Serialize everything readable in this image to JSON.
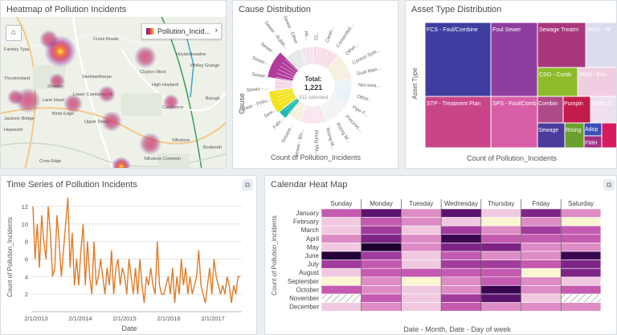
{
  "heatmap_card": {
    "title": "Heatmap of Pollution Incidents",
    "legend_label": "Pollution_Incid...",
    "home_icon": "home-icon",
    "chevron_icon": "chevron-right-icon",
    "places": [
      "Farnley Tyas",
      "Cross Roads",
      "Hoylandswaine",
      "Thurstonland",
      "Skelmanthorpe",
      "Clayton West",
      "Shepley",
      "Lower Cumberworth",
      "High Hoyland",
      "Lane Head",
      "Wolley Grange",
      "Jackson Bridge",
      "Birds Edge",
      "Cawthorne",
      "Barugh",
      "Hepworth",
      "Upper Denby",
      "Silkstone",
      "Crow Edge",
      "Silkstone Common",
      "Bodworth"
    ]
  },
  "cause_card": {
    "title": "Cause Distribution",
    "total_label": "Total:",
    "total_value": "1,221",
    "selected_text": "311 selected",
    "xlabel": "Count of Pollution_Incidents",
    "ylabel": "Cause",
    "labels": [
      "Sewer - Pollu...",
      "Sewer - ...",
      "Sewer...",
      "Sewer - ...",
      "Sewer - ...",
      "Sewer - Rubbi...",
      "Sewer - Other",
      "Ab...",
      "Cl...",
      "Clean...",
      "Consented...",
      "Other...",
      "Control Syst...",
      "Dual Man...",
      "Net esta...",
      "Other...",
      "Pipe F...",
      "Process...",
      "Rising M...",
      "Rising M...",
      "Rising Ma...",
      "Sewer - Blo...",
      "Grease...",
      "Fats...",
      "Sew..."
    ]
  },
  "asset_card": {
    "title": "Asset Type Distribution",
    "xlabel": "Count of Pollution_Incidents",
    "ylabel": "Asset Type",
    "cells": [
      "FCS - Foul/Combine",
      "Foul Sewer",
      "Sewage Treatm",
      "WDS - W",
      "STP - Treatment Plan",
      "SPS - Foul/Comb",
      "CSO - Comb",
      "BRM - Fou",
      "Combin",
      "Pumpin",
      "Water D",
      "Sewage",
      "Rising",
      "Adop",
      "FMH"
    ]
  },
  "timeseries_card": {
    "title": "Time Series of Pollution Incidents",
    "icon": "dataset-icon",
    "xlabel": "Date",
    "ylabel": "Count of Pollution_Incidents"
  },
  "calendar_card": {
    "title": "Calendar Heat Map",
    "icon": "dataset-icon",
    "xlabel": "Date - Month, Date - Day of week",
    "ylabel": "Count of Pollution_Incidents",
    "days": [
      "Sunday",
      "Monday",
      "Tuesday",
      "Wednesday",
      "Thursday",
      "Friday",
      "Saturday"
    ],
    "months": [
      "January",
      "February",
      "March",
      "April",
      "May",
      "June",
      "July",
      "August",
      "September",
      "October",
      "November",
      "December"
    ]
  },
  "chart_data": [
    {
      "type": "line",
      "title": "Time Series of Pollution Incidents",
      "xlabel": "Date",
      "ylabel": "Count of Pollution_Incidents",
      "x_ticks": [
        "2/1/2013",
        "2/1/2014",
        "2/1/2015",
        "2/1/2016",
        "2/1/2017"
      ],
      "y_ticks": [
        2,
        4,
        6,
        8,
        10,
        12
      ],
      "ylim": [
        0,
        13
      ],
      "x_range": [
        "2013-01",
        "2017-12"
      ],
      "color": "#e07b28",
      "series": [
        {
          "values": [
            12,
            6,
            10,
            5,
            11,
            8,
            6,
            12,
            9,
            4,
            5,
            11,
            8,
            4,
            7,
            10,
            13,
            5,
            9,
            3,
            6,
            3,
            7,
            10,
            3,
            8,
            4,
            2,
            8,
            3,
            4,
            6,
            4,
            2,
            5,
            3,
            7,
            2,
            5,
            6,
            3,
            5,
            4,
            2,
            6,
            4,
            2,
            5,
            2,
            6,
            3,
            1,
            4,
            3,
            5,
            3,
            2,
            8,
            3,
            2,
            2,
            3,
            4,
            2,
            5,
            1,
            4,
            2,
            6,
            3,
            5,
            2,
            4,
            2,
            3,
            4,
            7,
            3,
            2,
            1,
            3,
            5,
            2,
            6,
            4,
            3,
            2,
            3,
            2,
            4,
            3,
            1,
            3,
            2,
            4,
            4
          ]
        }
      ]
    },
    {
      "type": "heatmap",
      "title": "Calendar Heat Map",
      "xlabel": "Date - Month, Date - Day of week",
      "ylabel": "Count of Pollution_Incidents",
      "columns": [
        "Sunday",
        "Monday",
        "Tuesday",
        "Wednesday",
        "Thursday",
        "Friday",
        "Saturday"
      ],
      "rows": [
        "January",
        "February",
        "March",
        "April",
        "May",
        "June",
        "July",
        "August",
        "September",
        "October",
        "November",
        "December"
      ],
      "values": [
        [
          3,
          6,
          2,
          6,
          1,
          5,
          2
        ],
        [
          1,
          3,
          2,
          1,
          0,
          2,
          0
        ],
        [
          1,
          4,
          1,
          4,
          2,
          4,
          3
        ],
        [
          2,
          5,
          2,
          7,
          3,
          3,
          3
        ],
        [
          1,
          9,
          2,
          5,
          5,
          2,
          2
        ],
        [
          8,
          4,
          1,
          3,
          2,
          2,
          7
        ],
        [
          4,
          3,
          1,
          4,
          4,
          3,
          5
        ],
        [
          1,
          3,
          3,
          3,
          3,
          0,
          5
        ],
        [
          0,
          2,
          0,
          2,
          3,
          2,
          1
        ],
        [
          3,
          2,
          1,
          2,
          7,
          2,
          3
        ],
        [
          null,
          3,
          1,
          4,
          6,
          1,
          null
        ],
        [
          1,
          2,
          1,
          3,
          2,
          2,
          2
        ]
      ]
    },
    {
      "type": "pie",
      "title": "Cause Distribution",
      "total": 1221,
      "selected": 311
    }
  ]
}
